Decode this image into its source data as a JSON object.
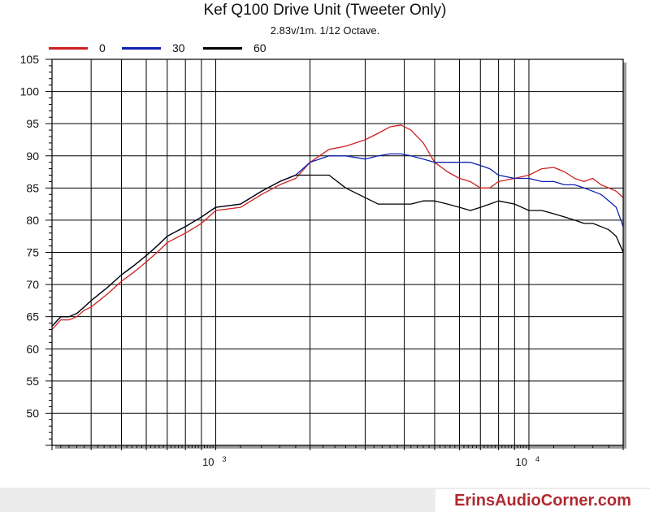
{
  "chart_data": {
    "type": "line",
    "title": "Kef Q100 Drive Unit (Tweeter Only)",
    "subtitle": "2.83v/1m.  1/12 Octave.",
    "xscale": "log",
    "xlim": [
      300,
      20000
    ],
    "ylim": [
      45,
      105
    ],
    "yticks": [
      50,
      55,
      60,
      65,
      70,
      75,
      80,
      85,
      90,
      95,
      100,
      105
    ],
    "xtick_labels": [
      {
        "base": "10",
        "exp": "3",
        "value": 1000
      },
      {
        "base": "10",
        "exp": "4",
        "value": 10000
      }
    ],
    "grid": true,
    "legend_position": "top-left",
    "series": [
      {
        "name": "0",
        "color": "#d02020",
        "x": [
          300,
          320,
          340,
          360,
          380,
          400,
          450,
          500,
          550,
          600,
          650,
          700,
          800,
          900,
          1000,
          1200,
          1400,
          1600,
          1800,
          2000,
          2300,
          2600,
          3000,
          3300,
          3600,
          3900,
          4200,
          4600,
          5000,
          5500,
          6000,
          6500,
          7000,
          7500,
          8000,
          9000,
          10000,
          11000,
          12000,
          13000,
          14000,
          15000,
          16000,
          17000,
          18000,
          19000,
          20000
        ],
        "y": [
          63,
          64.5,
          64.5,
          65,
          66,
          66.5,
          68.5,
          70.5,
          72,
          73.5,
          75,
          76.5,
          78,
          79.5,
          81.5,
          82,
          84,
          85.5,
          86.5,
          89,
          91,
          91.5,
          92.5,
          93.5,
          94.5,
          94.8,
          94,
          92,
          89,
          87.5,
          86.5,
          86,
          85,
          85,
          86,
          86.5,
          87,
          88,
          88.2,
          87.5,
          86.5,
          86,
          86.5,
          85.5,
          85,
          84.5,
          83.5
        ]
      },
      {
        "name": "30",
        "color": "#1020b0",
        "x": [
          300,
          320,
          340,
          360,
          380,
          400,
          450,
          500,
          550,
          600,
          650,
          700,
          800,
          900,
          1000,
          1200,
          1400,
          1600,
          1800,
          2000,
          2300,
          2600,
          3000,
          3300,
          3600,
          3900,
          4200,
          4600,
          5000,
          5500,
          6000,
          6500,
          7000,
          7500,
          8000,
          9000,
          10000,
          11000,
          12000,
          13000,
          14000,
          15000,
          16000,
          17000,
          18000,
          19000,
          20000
        ],
        "y": [
          63.5,
          65,
          65,
          65.5,
          66.5,
          67.5,
          69.5,
          71.5,
          73,
          74.5,
          76,
          77.5,
          79,
          80.5,
          82,
          82.5,
          84.5,
          86,
          87,
          89,
          90,
          90,
          89.5,
          90,
          90.3,
          90.3,
          90,
          89.5,
          89,
          89,
          89,
          89,
          88.5,
          88,
          87,
          86.5,
          86.5,
          86,
          86,
          85.5,
          85.5,
          85,
          84.5,
          84,
          83,
          82,
          79
        ]
      },
      {
        "name": "60",
        "color": "#000000",
        "x": [
          300,
          320,
          340,
          360,
          380,
          400,
          450,
          500,
          550,
          600,
          650,
          700,
          800,
          900,
          1000,
          1200,
          1400,
          1600,
          1800,
          2000,
          2300,
          2600,
          3000,
          3300,
          3600,
          3900,
          4200,
          4600,
          5000,
          5500,
          6000,
          6500,
          7000,
          7500,
          8000,
          9000,
          10000,
          11000,
          12000,
          13000,
          14000,
          15000,
          16000,
          17000,
          18000,
          19000,
          20000
        ],
        "y": [
          63.5,
          65,
          65,
          65.5,
          66.5,
          67.5,
          69.5,
          71.5,
          73,
          74.5,
          76,
          77.5,
          79,
          80.5,
          82,
          82.5,
          84.5,
          86,
          87,
          87,
          87,
          85,
          83.5,
          82.5,
          82.5,
          82.5,
          82.5,
          83,
          83,
          82.5,
          82,
          81.5,
          82,
          82.5,
          83,
          82.5,
          81.5,
          81.5,
          81,
          80.5,
          80,
          79.5,
          79.5,
          79,
          78.5,
          77.5,
          75
        ]
      }
    ]
  },
  "footer": {
    "brand": "ErinsAudioCorner.com"
  }
}
